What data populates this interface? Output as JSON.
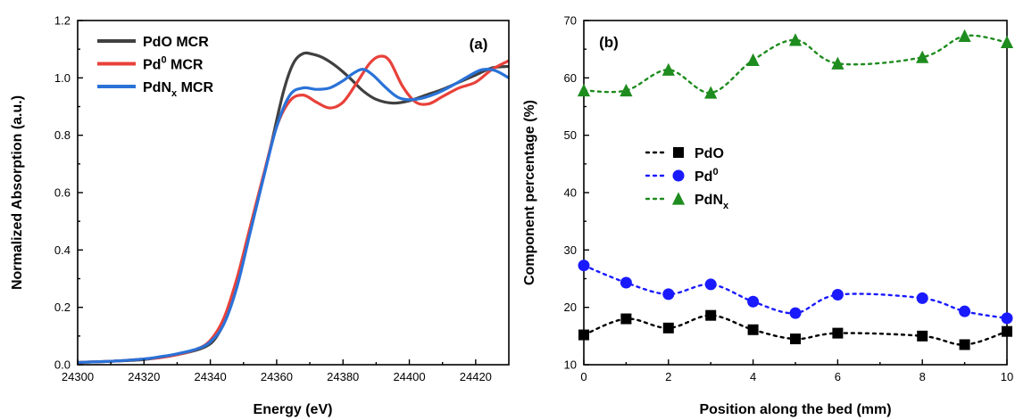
{
  "chart_data": [
    {
      "type": "line",
      "panel_label": "(a)",
      "xlabel": "Energy (eV)",
      "ylabel": "Normalized Absorption (a.u.)",
      "xlim": [
        24300,
        24430
      ],
      "ylim": [
        0.0,
        1.2
      ],
      "xticks": [
        24300,
        24320,
        24340,
        24360,
        24380,
        24400,
        24420
      ],
      "xtick_labels": [
        "24300",
        "24320",
        "24340",
        "24360",
        "24380",
        "24400",
        "24420"
      ],
      "yticks": [
        0.0,
        0.2,
        0.4,
        0.6,
        0.8,
        1.0,
        1.2
      ],
      "ytick_labels": [
        "0.0",
        "0.2",
        "0.4",
        "0.6",
        "0.8",
        "1.0",
        "1.2"
      ],
      "legend": "top-left",
      "grid": false,
      "series": [
        {
          "name": "PdO MCR",
          "legend_main": "PdO MCR",
          "legend_sub": "",
          "legend_tail": "",
          "color": "#404040",
          "x": [
            24300,
            24310,
            24320,
            24330,
            24338,
            24342,
            24346,
            24350,
            24354,
            24358,
            24362,
            24365,
            24368,
            24371,
            24374,
            24378,
            24382,
            24386,
            24390,
            24395,
            24400,
            24405,
            24410,
            24415,
            24420,
            24425,
            24430
          ],
          "y": [
            0.008,
            0.012,
            0.018,
            0.035,
            0.06,
            0.1,
            0.2,
            0.37,
            0.56,
            0.75,
            0.95,
            1.05,
            1.085,
            1.082,
            1.07,
            1.04,
            1.0,
            0.955,
            0.925,
            0.912,
            0.92,
            0.94,
            0.96,
            0.985,
            1.01,
            1.035,
            1.04
          ]
        },
        {
          "name": "Pd0 MCR",
          "legend_main": "Pd",
          "legend_sub": "0",
          "legend_tail": " MCR",
          "color": "#e8413a",
          "x": [
            24300,
            24310,
            24320,
            24325,
            24330,
            24336,
            24340,
            24344,
            24348,
            24352,
            24356,
            24360,
            24364,
            24368,
            24372,
            24376,
            24380,
            24384,
            24388,
            24391,
            24394,
            24398,
            24402,
            24406,
            24410,
            24415,
            24420,
            24425,
            24430
          ],
          "y": [
            0.008,
            0.012,
            0.02,
            0.025,
            0.035,
            0.055,
            0.085,
            0.16,
            0.3,
            0.48,
            0.66,
            0.83,
            0.92,
            0.94,
            0.915,
            0.895,
            0.915,
            0.98,
            1.05,
            1.075,
            1.06,
            0.97,
            0.915,
            0.91,
            0.935,
            0.965,
            0.985,
            1.03,
            1.06
          ]
        },
        {
          "name": "PdNx MCR",
          "legend_main": "PdN",
          "legend_sub": "x",
          "legend_tail": " MCR",
          "color": "#2a72d8",
          "x": [
            24300,
            24310,
            24320,
            24325,
            24330,
            24336,
            24340,
            24344,
            24348,
            24352,
            24356,
            24360,
            24364,
            24368,
            24372,
            24376,
            24380,
            24383,
            24386,
            24389,
            24393,
            24397,
            24402,
            24408,
            24414,
            24420,
            24423,
            24426,
            24430
          ],
          "y": [
            0.008,
            0.012,
            0.02,
            0.028,
            0.038,
            0.055,
            0.08,
            0.14,
            0.27,
            0.46,
            0.65,
            0.83,
            0.94,
            0.965,
            0.96,
            0.965,
            0.99,
            1.015,
            1.03,
            1.01,
            0.965,
            0.93,
            0.925,
            0.945,
            0.98,
            1.02,
            1.03,
            1.025,
            1.0
          ]
        }
      ]
    },
    {
      "type": "scatter",
      "panel_label": "(b)",
      "xlabel": "Position along the bed (mm)",
      "ylabel": "Component percentage (%)",
      "xlim": [
        0,
        10
      ],
      "ylim": [
        10,
        70
      ],
      "xticks": [
        0,
        2,
        4,
        6,
        8,
        10
      ],
      "xtick_labels": [
        "0",
        "2",
        "4",
        "6",
        "8",
        "10"
      ],
      "yticks": [
        10,
        20,
        30,
        40,
        50,
        60,
        70
      ],
      "ytick_labels": [
        "10",
        "20",
        "30",
        "40",
        "50",
        "60",
        "70"
      ],
      "legend": "center-left",
      "grid": false,
      "x": [
        0,
        1,
        2,
        3,
        4,
        5,
        6,
        8,
        9,
        10
      ],
      "series": [
        {
          "name": "PdO",
          "legend_main": "PdO",
          "legend_sup": "",
          "legend_sub": "",
          "marker": "square",
          "color": "#000000",
          "values": [
            15.2,
            18.0,
            16.4,
            18.6,
            16.1,
            14.5,
            15.5,
            15.0,
            13.5,
            15.8
          ]
        },
        {
          "name": "Pd0",
          "legend_main": "Pd",
          "legend_sup": "0",
          "legend_sub": "",
          "marker": "circle",
          "color": "#1a1aff",
          "values": [
            27.3,
            24.3,
            22.3,
            24.0,
            21.0,
            19.0,
            22.2,
            21.6,
            19.3,
            18.1
          ]
        },
        {
          "name": "PdNx",
          "legend_main": "PdN",
          "legend_sup": "",
          "legend_sub": "x",
          "marker": "triangle",
          "color": "#1e8c1e",
          "values": [
            57.8,
            57.8,
            61.4,
            57.4,
            63.1,
            66.6,
            62.5,
            63.6,
            67.3,
            66.2
          ]
        }
      ]
    }
  ]
}
